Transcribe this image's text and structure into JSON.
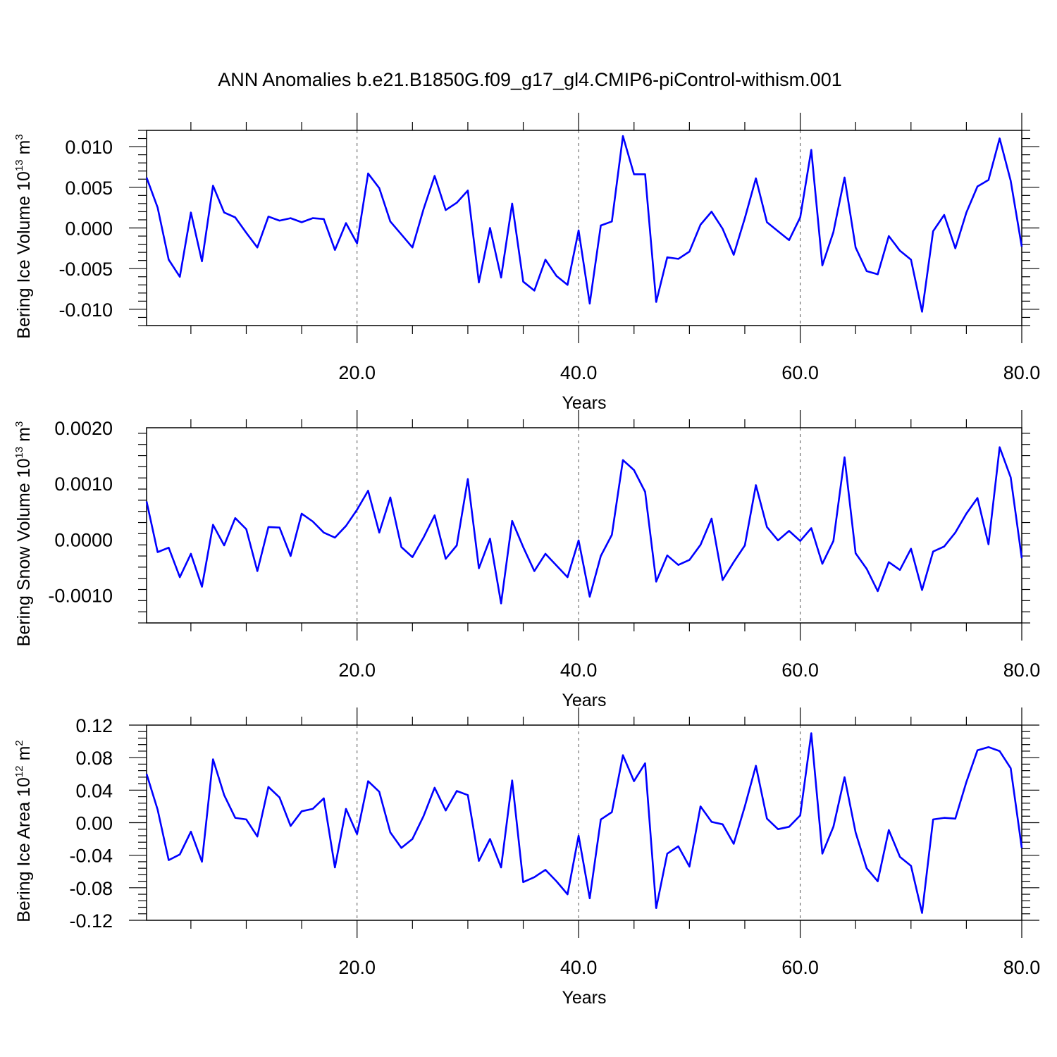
{
  "title": "ANN Anomalies b.e21.B1850G.f09_g17_gl4.CMIP6-piControl-withism.001",
  "chart_data": [
    {
      "type": "line",
      "ylabel": "Bering Ice Volume",
      "yunit_base": "10",
      "yunit_exp": "13",
      "yunit_tail": " m",
      "yunit_pow": "3",
      "xlabel": "Years",
      "xlim": [
        1,
        80
      ],
      "ylim": [
        -0.012,
        0.012
      ],
      "x_ticks": [
        20,
        40,
        60,
        80
      ],
      "x_tick_labels": [
        "20.0",
        "40.0",
        "60.0",
        "80.0"
      ],
      "y_ticks": [
        -0.01,
        -0.005,
        0.0,
        0.005,
        0.01
      ],
      "y_tick_labels": [
        "-0.010",
        "-0.005",
        "0.000",
        "0.005",
        "0.010"
      ],
      "color": "#0000ff",
      "x_start": 1,
      "values": [
        0.0062,
        0.0025,
        -0.0039,
        -0.006,
        0.0019,
        -0.0041,
        0.0052,
        0.0019,
        0.0013,
        -0.0006,
        -0.0024,
        0.0014,
        0.0009,
        0.0012,
        0.0007,
        0.0012,
        0.0011,
        -0.0027,
        0.0006,
        -0.0019,
        0.0067,
        0.0049,
        0.0008,
        -0.0008,
        -0.0024,
        0.0023,
        0.0064,
        0.0022,
        0.0031,
        0.0046,
        -0.0067,
        0.0,
        -0.0061,
        0.003,
        -0.0066,
        -0.0077,
        -0.0039,
        -0.0059,
        -0.007,
        -0.0003,
        -0.0093,
        0.0003,
        0.0008,
        0.0113,
        0.0066,
        0.0066,
        -0.0091,
        -0.0036,
        -0.0038,
        -0.0029,
        0.0004,
        0.002,
        -0.0001,
        -0.0033,
        0.0012,
        0.0061,
        0.0007,
        -0.0004,
        -0.0015,
        0.0013,
        0.0096,
        -0.0046,
        -0.0005,
        0.0062,
        -0.0024,
        -0.0053,
        -0.0057,
        -0.001,
        -0.0028,
        -0.0039,
        -0.0103,
        -0.0004,
        0.0016,
        -0.0025,
        0.0019,
        0.0051,
        0.0059,
        0.011,
        0.0058,
        -0.0023
      ]
    },
    {
      "type": "line",
      "ylabel": "Bering Snow Volume",
      "yunit_base": "10",
      "yunit_exp": "13",
      "yunit_tail": " m",
      "yunit_pow": "3",
      "xlabel": "Years",
      "xlim": [
        1,
        80
      ],
      "ylim": [
        -0.0015,
        0.002
      ],
      "x_ticks": [
        20,
        40,
        60,
        80
      ],
      "x_tick_labels": [
        "20.0",
        "40.0",
        "60.0",
        "80.0"
      ],
      "y_ticks": [
        -0.001,
        0.0,
        0.001,
        0.002
      ],
      "y_tick_labels": [
        "-0.0010",
        "0.0000",
        "0.0010",
        "0.0020"
      ],
      "color": "#0000ff",
      "x_start": 1,
      "values": [
        0.00068,
        -0.00023,
        -0.00015,
        -0.00068,
        -0.00026,
        -0.00085,
        0.00026,
        -0.00011,
        0.00038,
        0.00018,
        -0.00057,
        0.00022,
        0.00021,
        -0.0003,
        0.00046,
        0.00032,
        0.00012,
        3e-05,
        0.00024,
        0.00053,
        0.00087,
        0.00012,
        0.00075,
        -0.00014,
        -0.00032,
        3e-05,
        0.00043,
        -0.00035,
        -0.00011,
        0.00108,
        -0.00052,
        1e-05,
        -0.00115,
        0.00033,
        -0.00014,
        -0.00057,
        -0.00026,
        -0.00047,
        -0.00068,
        -2e-05,
        -0.00103,
        -0.0003,
        8e-05,
        0.00142,
        0.00124,
        0.00085,
        -0.00076,
        -0.00029,
        -0.00046,
        -0.00037,
        -0.0001,
        0.00037,
        -0.00073,
        -0.00041,
        -0.00011,
        0.00097,
        0.00022,
        -2e-05,
        0.00015,
        -3e-05,
        0.0002,
        -0.00044,
        -3e-05,
        0.00147,
        -0.00025,
        -0.00053,
        -0.00093,
        -0.00041,
        -0.00055,
        -0.00017,
        -0.00091,
        -0.00022,
        -0.00013,
        0.00012,
        0.00046,
        0.00074,
        -9e-05,
        0.00165,
        0.00111,
        -0.00034
      ]
    },
    {
      "type": "line",
      "ylabel": "Bering Ice Area",
      "yunit_base": "10",
      "yunit_exp": "12",
      "yunit_tail": " m",
      "yunit_pow": "2",
      "xlabel": "Years",
      "xlim": [
        1,
        80
      ],
      "ylim": [
        -0.12,
        0.12
      ],
      "x_ticks": [
        20,
        40,
        60,
        80
      ],
      "x_tick_labels": [
        "20.0",
        "40.0",
        "60.0",
        "80.0"
      ],
      "y_ticks": [
        -0.12,
        -0.08,
        -0.04,
        0.0,
        0.04,
        0.08,
        0.12
      ],
      "y_tick_labels": [
        "-0.12",
        "-0.08",
        "-0.04",
        "0.00",
        "0.04",
        "0.08",
        "0.12"
      ],
      "color": "#0000ff",
      "x_start": 1,
      "values": [
        0.06,
        0.016,
        -0.046,
        -0.039,
        -0.011,
        -0.048,
        0.078,
        0.034,
        0.006,
        0.004,
        -0.017,
        0.044,
        0.031,
        -0.004,
        0.014,
        0.017,
        0.03,
        -0.055,
        0.017,
        -0.014,
        0.051,
        0.038,
        -0.012,
        -0.031,
        -0.02,
        0.008,
        0.043,
        0.015,
        0.039,
        0.034,
        -0.047,
        -0.02,
        -0.055,
        0.052,
        -0.073,
        -0.067,
        -0.058,
        -0.072,
        -0.088,
        -0.016,
        -0.093,
        0.004,
        0.013,
        0.083,
        0.051,
        0.073,
        -0.105,
        -0.038,
        -0.029,
        -0.054,
        0.02,
        0.001,
        -0.002,
        -0.026,
        0.02,
        0.07,
        0.005,
        -0.008,
        -0.005,
        0.009,
        0.11,
        -0.038,
        -0.005,
        0.056,
        -0.012,
        -0.056,
        -0.072,
        -0.009,
        -0.042,
        -0.053,
        -0.111,
        0.004,
        0.006,
        0.005,
        0.05,
        0.089,
        0.093,
        0.088,
        0.067,
        -0.031
      ]
    }
  ]
}
